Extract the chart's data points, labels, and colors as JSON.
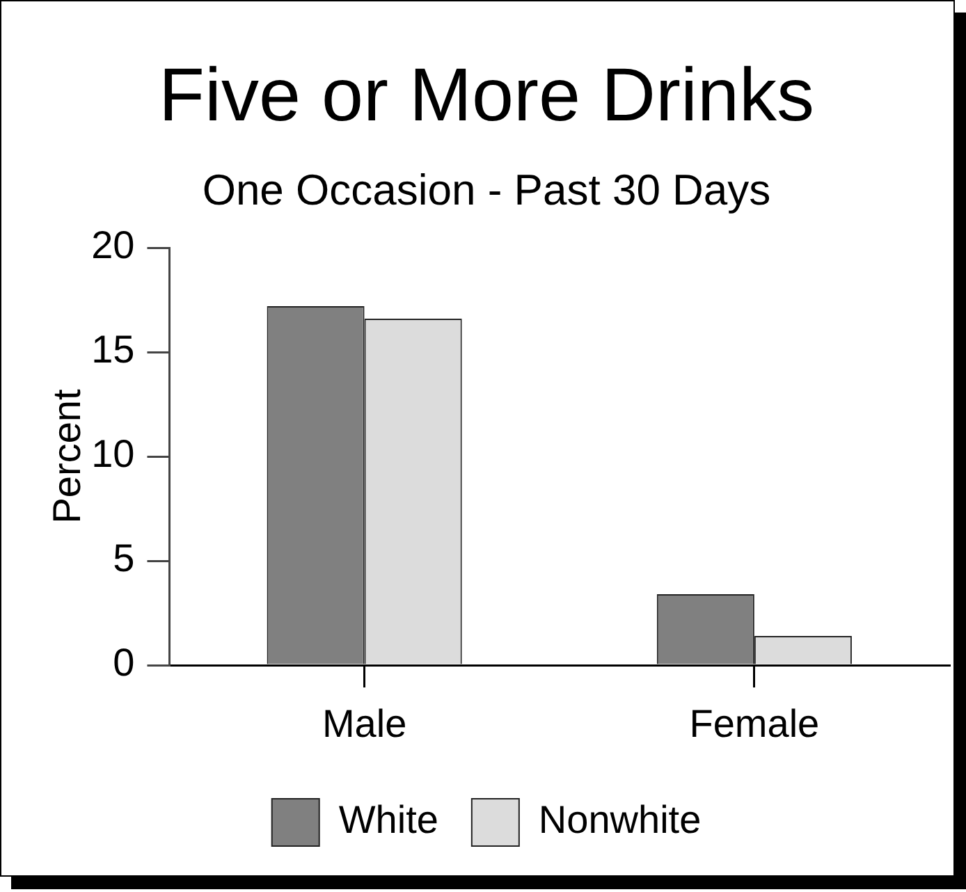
{
  "chart_data": {
    "type": "bar",
    "title": "Five or More Drinks",
    "subtitle": "One Occasion - Past 30 Days",
    "ylabel": "Percent",
    "categories": [
      "Male",
      "Female"
    ],
    "series": [
      {
        "name": "White",
        "color": "#808080",
        "values": [
          17.2,
          3.4
        ]
      },
      {
        "name": "Nonwhite",
        "color": "#dcdcdc",
        "values": [
          16.6,
          1.4
        ]
      }
    ],
    "ylim": [
      0,
      20
    ],
    "yticks": [
      0,
      5,
      10,
      15,
      20
    ],
    "grid": false,
    "legend": "bottom"
  }
}
